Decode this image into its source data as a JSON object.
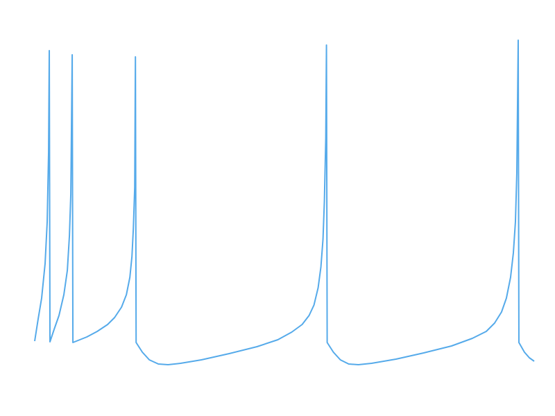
{
  "chart_data": {
    "type": "line",
    "color": "#55aaea",
    "x": [
      0,
      5,
      10,
      15,
      18,
      20,
      21,
      22,
      28,
      35,
      42,
      47,
      50,
      52,
      54,
      55,
      65,
      75,
      90,
      105,
      115,
      125,
      132,
      137,
      140,
      142,
      144,
      145,
      146,
      155,
      165,
      178,
      192,
      210,
      240,
      280,
      320,
      350,
      370,
      385,
      395,
      402,
      408,
      412,
      415,
      417,
      419,
      420,
      421,
      430,
      440,
      452,
      466,
      485,
      520,
      560,
      600,
      630,
      650,
      662,
      672,
      679,
      685,
      689,
      692,
      694,
      696,
      697,
      705,
      712,
      719
    ],
    "values": [
      8,
      40,
      70,
      120,
      180,
      280,
      427,
      7,
      25,
      45,
      75,
      110,
      160,
      220,
      421,
      6,
      10,
      14,
      22,
      32,
      42,
      57,
      75,
      100,
      130,
      170,
      230,
      418,
      6,
      -8,
      -19,
      -25,
      -26,
      -24,
      -19,
      -10,
      0,
      10,
      21,
      32,
      45,
      60,
      85,
      115,
      155,
      210,
      300,
      435,
      6,
      -8,
      -19,
      -25,
      -26,
      -24,
      -18,
      -9,
      1,
      12,
      22,
      34,
      50,
      70,
      100,
      135,
      180,
      250,
      442,
      6,
      -8,
      -16,
      -21
    ]
  }
}
